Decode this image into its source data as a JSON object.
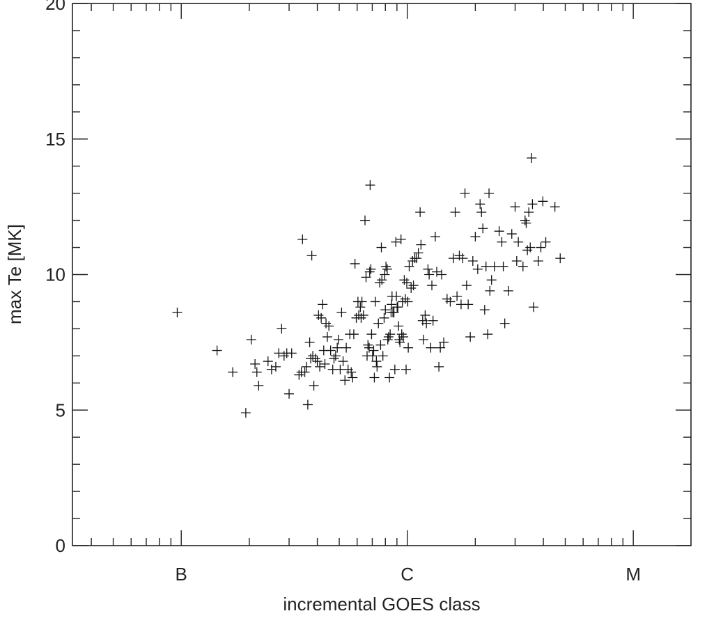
{
  "chart_data": {
    "type": "scatter",
    "marker": "plus",
    "xlabel": "incremental GOES class",
    "ylabel": "max Te [MK]",
    "xscale": "log",
    "xlim": [
      3.3e-08,
      1.8e-05
    ],
    "ylim": [
      0,
      20
    ],
    "x_ticks": [
      {
        "value": 1e-07,
        "label": "B"
      },
      {
        "value": 1e-06,
        "label": "C"
      },
      {
        "value": 1e-05,
        "label": "M"
      }
    ],
    "y_ticks": [
      {
        "value": 0,
        "label": "0"
      },
      {
        "value": 5,
        "label": "5"
      },
      {
        "value": 10,
        "label": "10"
      },
      {
        "value": 15,
        "label": "15"
      },
      {
        "value": 20,
        "label": "20"
      }
    ],
    "y_minor_step": 1,
    "grid": false,
    "points": [
      [
        9.6e-08,
        8.6
      ],
      [
        1.44e-07,
        7.2
      ],
      [
        1.69e-07,
        6.4
      ],
      [
        1.93e-07,
        4.9
      ],
      [
        2.04e-07,
        7.6
      ],
      [
        2.12e-07,
        6.7
      ],
      [
        2.16e-07,
        6.4
      ],
      [
        2.2e-07,
        5.9
      ],
      [
        2.42e-07,
        6.8
      ],
      [
        2.51e-07,
        6.5
      ],
      [
        2.62e-07,
        6.6
      ],
      [
        2.7e-07,
        7.1
      ],
      [
        2.78e-07,
        8.0
      ],
      [
        2.85e-07,
        7.0
      ],
      [
        2.93e-07,
        7.1
      ],
      [
        3e-07,
        5.6
      ],
      [
        3.08e-07,
        7.1
      ],
      [
        3.32e-07,
        6.3
      ],
      [
        3.4e-07,
        6.4
      ],
      [
        3.44e-07,
        11.3
      ],
      [
        3.52e-07,
        6.4
      ],
      [
        3.58e-07,
        6.6
      ],
      [
        3.63e-07,
        5.2
      ],
      [
        3.7e-07,
        7.5
      ],
      [
        3.74e-07,
        6.9
      ],
      [
        3.78e-07,
        10.7
      ],
      [
        3.82e-07,
        7.0
      ],
      [
        3.86e-07,
        5.9
      ],
      [
        3.92e-07,
        6.9
      ],
      [
        4e-07,
        6.8
      ],
      [
        4.05e-07,
        8.5
      ],
      [
        4.1e-07,
        6.6
      ],
      [
        4.16e-07,
        8.4
      ],
      [
        4.22e-07,
        8.9
      ],
      [
        4.27e-07,
        7.2
      ],
      [
        4.32e-07,
        6.7
      ],
      [
        4.37e-07,
        8.2
      ],
      [
        4.43e-07,
        7.7
      ],
      [
        4.5e-07,
        8.1
      ],
      [
        4.58e-07,
        7.2
      ],
      [
        4.68e-07,
        6.5
      ],
      [
        4.74e-07,
        6.9
      ],
      [
        4.82e-07,
        7.0
      ],
      [
        4.9e-07,
        7.3
      ],
      [
        4.96e-07,
        7.6
      ],
      [
        5.05e-07,
        6.5
      ],
      [
        5.12e-07,
        8.6
      ],
      [
        5.2e-07,
        6.8
      ],
      [
        5.3e-07,
        6.1
      ],
      [
        5.37e-07,
        7.3
      ],
      [
        5.47e-07,
        6.5
      ],
      [
        5.57e-07,
        7.8
      ],
      [
        5.65e-07,
        6.4
      ],
      [
        5.73e-07,
        6.2
      ],
      [
        5.8e-07,
        7.8
      ],
      [
        5.87e-07,
        10.4
      ],
      [
        5.95e-07,
        8.4
      ],
      [
        6.05e-07,
        9.0
      ],
      [
        6.1e-07,
        8.5
      ],
      [
        6.2e-07,
        8.8
      ],
      [
        6.25e-07,
        8.4
      ],
      [
        6.3e-07,
        9.0
      ],
      [
        6.4e-07,
        8.5
      ],
      [
        6.5e-07,
        12.0
      ],
      [
        6.57e-07,
        9.9
      ],
      [
        6.64e-07,
        7.0
      ],
      [
        6.7e-07,
        7.4
      ],
      [
        6.78e-07,
        7.3
      ],
      [
        6.82e-07,
        10.1
      ],
      [
        6.85e-07,
        13.3
      ],
      [
        6.9e-07,
        10.2
      ],
      [
        6.95e-07,
        7.8
      ],
      [
        7.02e-07,
        7.0
      ],
      [
        7.1e-07,
        7.2
      ],
      [
        7.15e-07,
        6.2
      ],
      [
        7.22e-07,
        9.0
      ],
      [
        7.3e-07,
        6.8
      ],
      [
        7.35e-07,
        6.6
      ],
      [
        7.45e-07,
        8.2
      ],
      [
        7.55e-07,
        9.7
      ],
      [
        7.62e-07,
        7.4
      ],
      [
        7.68e-07,
        11.0
      ],
      [
        7.72e-07,
        9.8
      ],
      [
        7.8e-07,
        7.0
      ],
      [
        7.9e-07,
        8.4
      ],
      [
        7.95e-07,
        10.0
      ],
      [
        8e-07,
        8.7
      ],
      [
        8.05e-07,
        10.3
      ],
      [
        8.15e-07,
        10.2
      ],
      [
        8.2e-07,
        7.6
      ],
      [
        8.27e-07,
        7.7
      ],
      [
        8.34e-07,
        6.2
      ],
      [
        8.4e-07,
        7.8
      ],
      [
        8.48e-07,
        8.6
      ],
      [
        8.52e-07,
        8.9
      ],
      [
        8.56e-07,
        9.2
      ],
      [
        8.64e-07,
        8.6
      ],
      [
        8.73e-07,
        8.6
      ],
      [
        8.81e-07,
        6.5
      ],
      [
        8.9e-07,
        11.2
      ],
      [
        8.95e-07,
        9.2
      ],
      [
        9.02e-07,
        8.8
      ],
      [
        9.08e-07,
        8.8
      ],
      [
        9.15e-07,
        8.1
      ],
      [
        9.22e-07,
        7.6
      ],
      [
        9.28e-07,
        7.5
      ],
      [
        9.38e-07,
        11.3
      ],
      [
        9.45e-07,
        7.8
      ],
      [
        9.52e-07,
        9.0
      ],
      [
        9.6e-07,
        7.7
      ],
      [
        9.7e-07,
        9.8
      ],
      [
        9.8e-07,
        9.1
      ],
      [
        9.88e-07,
        6.5
      ],
      [
        9.95e-07,
        9.7
      ],
      [
        1.005e-06,
        9.0
      ],
      [
        1.01e-06,
        7.3
      ],
      [
        1.02e-06,
        10.3
      ],
      [
        1.04e-06,
        9.5
      ],
      [
        1.055e-06,
        10.5
      ],
      [
        1.065e-06,
        9.6
      ],
      [
        1.08e-06,
        10.6
      ],
      [
        1.1e-06,
        10.6
      ],
      [
        1.12e-06,
        10.8
      ],
      [
        1.14e-06,
        12.3
      ],
      [
        1.15e-06,
        11.1
      ],
      [
        1.17e-06,
        8.3
      ],
      [
        1.18e-06,
        7.6
      ],
      [
        1.2e-06,
        8.5
      ],
      [
        1.215e-06,
        8.2
      ],
      [
        1.235e-06,
        10.2
      ],
      [
        1.25e-06,
        10.0
      ],
      [
        1.27e-06,
        7.3
      ],
      [
        1.285e-06,
        9.6
      ],
      [
        1.3e-06,
        8.3
      ],
      [
        1.33e-06,
        11.4
      ],
      [
        1.35e-06,
        10.1
      ],
      [
        1.38e-06,
        6.6
      ],
      [
        1.4e-06,
        7.3
      ],
      [
        1.42e-06,
        10.0
      ],
      [
        1.45e-06,
        7.5
      ],
      [
        1.5e-06,
        9.1
      ],
      [
        1.55e-06,
        9.0
      ],
      [
        1.6e-06,
        10.6
      ],
      [
        1.63e-06,
        12.3
      ],
      [
        1.66e-06,
        9.2
      ],
      [
        1.7e-06,
        10.7
      ],
      [
        1.73e-06,
        8.9
      ],
      [
        1.76e-06,
        10.6
      ],
      [
        1.8e-06,
        13.0
      ],
      [
        1.83e-06,
        9.6
      ],
      [
        1.86e-06,
        8.9
      ],
      [
        1.9e-06,
        7.7
      ],
      [
        1.95e-06,
        10.5
      ],
      [
        2e-06,
        11.4
      ],
      [
        2.05e-06,
        10.2
      ],
      [
        2.1e-06,
        12.6
      ],
      [
        2.13e-06,
        12.3
      ],
      [
        2.16e-06,
        11.7
      ],
      [
        2.2e-06,
        8.7
      ],
      [
        2.23e-06,
        10.3
      ],
      [
        2.27e-06,
        7.8
      ],
      [
        2.3e-06,
        13.0
      ],
      [
        2.32e-06,
        9.4
      ],
      [
        2.36e-06,
        9.8
      ],
      [
        2.43e-06,
        10.3
      ],
      [
        2.55e-06,
        11.6
      ],
      [
        2.62e-06,
        11.2
      ],
      [
        2.66e-06,
        10.3
      ],
      [
        2.7e-06,
        8.2
      ],
      [
        2.8e-06,
        9.4
      ],
      [
        2.9e-06,
        11.5
      ],
      [
        3e-06,
        12.5
      ],
      [
        3.05e-06,
        10.5
      ],
      [
        3.1e-06,
        11.2
      ],
      [
        3.25e-06,
        10.3
      ],
      [
        3.32e-06,
        12.0
      ],
      [
        3.36e-06,
        11.9
      ],
      [
        3.4e-06,
        10.9
      ],
      [
        3.45e-06,
        12.3
      ],
      [
        3.5e-06,
        11.0
      ],
      [
        3.55e-06,
        14.3
      ],
      [
        3.58e-06,
        12.6
      ],
      [
        3.62e-06,
        8.8
      ],
      [
        3.8e-06,
        10.5
      ],
      [
        3.9e-06,
        11.0
      ],
      [
        3.98e-06,
        12.7
      ],
      [
        4.1e-06,
        11.2
      ],
      [
        4.5e-06,
        12.5
      ],
      [
        4.75e-06,
        10.6
      ]
    ]
  }
}
